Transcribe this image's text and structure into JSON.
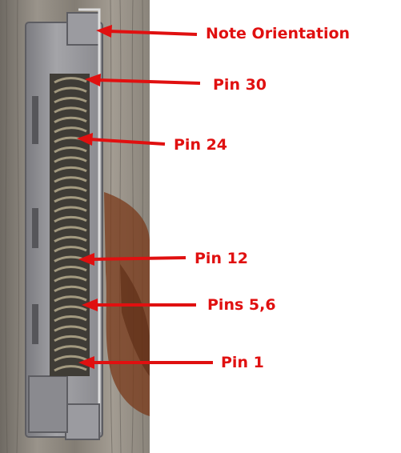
{
  "annotations": [
    {
      "key": "note_orientation",
      "text": "Note Orientation"
    },
    {
      "key": "pin_30",
      "text": "Pin 30"
    },
    {
      "key": "pin_24",
      "text": "Pin 24"
    },
    {
      "key": "pin_12",
      "text": "Pin 12"
    },
    {
      "key": "pins_5_6",
      "text": "Pins 5,6"
    },
    {
      "key": "pin_1",
      "text": "Pin 1"
    }
  ],
  "colors": {
    "label": "#e01010",
    "arrow": "#e01010",
    "wood": "#8a7f74",
    "rust": "#7a3a1a",
    "connector_body": "#8e8e92",
    "pins": "#6e6650"
  },
  "photo": {
    "subject": "30-pin dock connector against wood background",
    "icon": "connector-photo"
  }
}
